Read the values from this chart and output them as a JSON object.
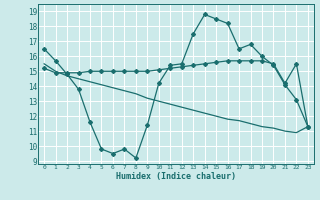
{
  "xlabel": "Humidex (Indice chaleur)",
  "bg_color": "#cceaea",
  "grid_color": "#b0d8d8",
  "line_color": "#1a6e6e",
  "xlim": [
    -0.5,
    23.5
  ],
  "ylim": [
    8.8,
    19.5
  ],
  "xticks": [
    0,
    1,
    2,
    3,
    4,
    5,
    6,
    7,
    8,
    9,
    10,
    11,
    12,
    13,
    14,
    15,
    16,
    17,
    18,
    19,
    20,
    21,
    22,
    23
  ],
  "yticks": [
    9,
    10,
    11,
    12,
    13,
    14,
    15,
    16,
    17,
    18,
    19
  ],
  "series1_x": [
    0,
    1,
    2,
    3,
    4,
    5,
    6,
    7,
    8,
    9,
    10,
    11,
    12,
    13,
    14,
    15,
    16,
    17,
    18,
    19,
    20,
    21,
    22,
    23
  ],
  "series1_y": [
    16.5,
    15.7,
    14.8,
    13.8,
    11.6,
    9.8,
    9.5,
    9.8,
    9.2,
    11.4,
    14.2,
    15.4,
    15.5,
    17.5,
    18.8,
    18.5,
    18.2,
    16.5,
    16.8,
    16.0,
    15.4,
    14.1,
    13.1,
    11.3
  ],
  "series2_x": [
    0,
    1,
    2,
    3,
    4,
    5,
    6,
    7,
    8,
    9,
    10,
    11,
    12,
    13,
    14,
    15,
    16,
    17,
    18,
    19,
    20,
    21,
    22,
    23
  ],
  "series2_y": [
    15.2,
    14.9,
    14.9,
    14.9,
    15.0,
    15.0,
    15.0,
    15.0,
    15.0,
    15.0,
    15.1,
    15.2,
    15.3,
    15.4,
    15.5,
    15.6,
    15.7,
    15.7,
    15.7,
    15.7,
    15.5,
    14.2,
    15.5,
    11.3
  ],
  "series3_x": [
    0,
    1,
    2,
    3,
    4,
    5,
    6,
    7,
    8,
    9,
    10,
    11,
    12,
    13,
    14,
    15,
    16,
    17,
    18,
    19,
    20,
    21,
    22,
    23
  ],
  "series3_y": [
    15.5,
    15.0,
    14.7,
    14.5,
    14.3,
    14.1,
    13.9,
    13.7,
    13.5,
    13.2,
    13.0,
    12.8,
    12.6,
    12.4,
    12.2,
    12.0,
    11.8,
    11.7,
    11.5,
    11.3,
    11.2,
    11.0,
    10.9,
    11.3
  ]
}
